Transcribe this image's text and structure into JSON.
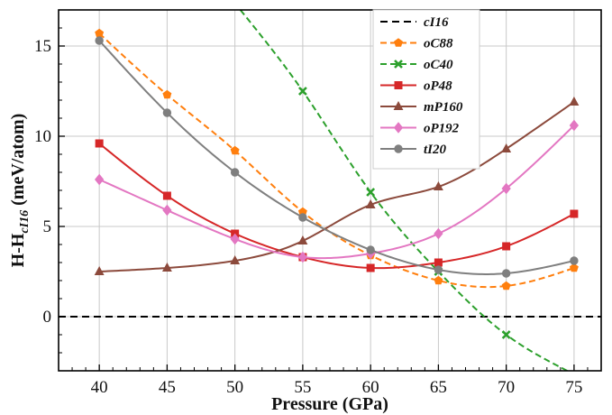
{
  "chart_data": {
    "type": "line",
    "xlabel": "Pressure (GPa)",
    "ylabel_main": "H-H",
    "ylabel_sub": "cI16",
    "ylabel_unit": " (meV/atom)",
    "xlim": [
      37,
      77
    ],
    "ylim": [
      -3,
      17
    ],
    "xticks": [
      40,
      45,
      50,
      55,
      60,
      65,
      70,
      75
    ],
    "yticks": [
      0,
      5,
      10,
      15
    ],
    "grid": true,
    "legend_position": "top-right",
    "series": [
      {
        "name": "cI16",
        "color": "#000000",
        "dash": "8,5",
        "marker": "none",
        "smooth": false,
        "x": [
          37,
          77
        ],
        "y": [
          0,
          0
        ],
        "markers_x": []
      },
      {
        "name": "oC88",
        "color": "#ff7f0e",
        "dash": "7,4",
        "marker": "pentagon",
        "smooth": true,
        "x": [
          40,
          45,
          50,
          55,
          60,
          65,
          70,
          75
        ],
        "y": [
          15.7,
          12.3,
          9.2,
          5.8,
          3.4,
          2.0,
          1.7,
          2.7
        ],
        "markers_x": [
          40,
          45,
          50,
          55,
          60,
          65,
          70,
          75
        ]
      },
      {
        "name": "oC40",
        "color": "#2ca02c",
        "dash": "7,4",
        "marker": "x",
        "smooth": true,
        "x": [
          50.4,
          55,
          60,
          65,
          70,
          74.5
        ],
        "y": [
          17.0,
          12.5,
          6.9,
          2.5,
          -1.0,
          -3.0
        ],
        "markers_x": [
          55,
          60,
          65,
          70
        ]
      },
      {
        "name": "oP48",
        "color": "#d62728",
        "dash": "",
        "marker": "square",
        "smooth": true,
        "x": [
          40,
          45,
          50,
          55,
          60,
          65,
          70,
          75
        ],
        "y": [
          9.6,
          6.7,
          4.6,
          3.3,
          2.7,
          3.0,
          3.9,
          5.7
        ],
        "markers_x": [
          40,
          45,
          50,
          55,
          60,
          65,
          70,
          75
        ]
      },
      {
        "name": "mP160",
        "color": "#8c4a3c",
        "dash": "",
        "marker": "triangle",
        "smooth": true,
        "x": [
          40,
          45,
          50,
          55,
          60,
          65,
          70,
          75
        ],
        "y": [
          2.5,
          2.7,
          3.1,
          4.2,
          6.2,
          7.2,
          9.3,
          11.9
        ],
        "markers_x": [
          40,
          45,
          50,
          55,
          60,
          65,
          70,
          75
        ]
      },
      {
        "name": "oP192",
        "color": "#e377c2",
        "dash": "",
        "marker": "diamond",
        "smooth": true,
        "x": [
          40,
          45,
          50,
          55,
          60,
          65,
          70,
          75
        ],
        "y": [
          7.6,
          5.9,
          4.3,
          3.3,
          3.5,
          4.6,
          7.1,
          10.6
        ],
        "markers_x": [
          40,
          45,
          50,
          55,
          60,
          65,
          70,
          75
        ]
      },
      {
        "name": "tI20",
        "color": "#7f7f7f",
        "dash": "",
        "marker": "circle",
        "smooth": true,
        "x": [
          40,
          45,
          50,
          55,
          60,
          65,
          70,
          75
        ],
        "y": [
          15.3,
          11.3,
          8.0,
          5.5,
          3.7,
          2.6,
          2.4,
          3.1
        ],
        "markers_x": [
          40,
          45,
          50,
          55,
          60,
          65,
          70,
          75
        ]
      }
    ]
  }
}
